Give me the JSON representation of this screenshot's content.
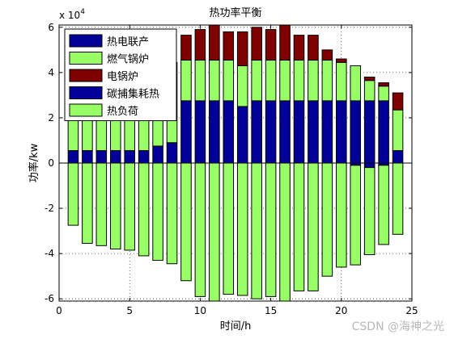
{
  "chart_data": {
    "type": "bar",
    "stacked": true,
    "title": "热功率平衡",
    "xlabel": "时间/h",
    "ylabel": "功率/kw",
    "exponent_label": "x 10",
    "exponent_power": "4",
    "xlim": [
      0,
      25
    ],
    "ylim": [
      -61000,
      61000
    ],
    "x_ticks": [
      0,
      5,
      10,
      15,
      20,
      25
    ],
    "y_ticks": [
      -60000,
      -40000,
      -20000,
      0,
      20000,
      40000,
      60000
    ],
    "y_tick_labels": [
      "-6",
      "-4",
      "-2",
      "0",
      "2",
      "4",
      "6"
    ],
    "grid": true,
    "legend_position": "top-left",
    "x": [
      1,
      2,
      3,
      4,
      5,
      6,
      7,
      8,
      9,
      10,
      11,
      12,
      13,
      14,
      15,
      16,
      17,
      18,
      19,
      20,
      21,
      22,
      23,
      24
    ],
    "series": [
      {
        "name": "热电联产",
        "color": "#000099",
        "values": [
          5500,
          5500,
          5500,
          5500,
          5500,
          5500,
          7500,
          9000,
          27500,
          27500,
          27500,
          27500,
          25000,
          27500,
          27500,
          27500,
          27500,
          27500,
          27500,
          27500,
          27500,
          27500,
          27500,
          5500
        ]
      },
      {
        "name": "燃气锅炉",
        "color": "#99ff66",
        "values": [
          22000,
          30000,
          31000,
          32500,
          33000,
          35500,
          35500,
          35500,
          18000,
          18000,
          18000,
          18000,
          18000,
          18000,
          18000,
          18000,
          18000,
          18000,
          18000,
          17000,
          15500,
          9000,
          6500,
          18000
        ]
      },
      {
        "name": "电锅炉",
        "color": "#800000",
        "values": [
          0,
          0,
          0,
          0,
          0,
          0,
          0,
          0,
          11000,
          13500,
          16000,
          12500,
          15000,
          14500,
          13500,
          17000,
          11000,
          11000,
          4500,
          1500,
          0,
          1500,
          1500,
          7500
        ]
      },
      {
        "name": "碳捕集耗热",
        "color": "#000099",
        "values": [
          0,
          0,
          0,
          0,
          0,
          0,
          0,
          0,
          0,
          0,
          0,
          0,
          0,
          0,
          0,
          0,
          0,
          0,
          0,
          0,
          -1000,
          -2000,
          -1000,
          0
        ]
      },
      {
        "name": "热负荷",
        "color": "#99ff66",
        "values": [
          -27500,
          -35500,
          -36500,
          -38000,
          -38500,
          -41000,
          -43000,
          -44500,
          -52000,
          -59000,
          -61500,
          -58000,
          -58500,
          -60000,
          -59000,
          -62500,
          -56500,
          -56500,
          -50000,
          -46000,
          -44000,
          -38500,
          -35000,
          -31500
        ]
      }
    ],
    "legend": [
      "热电联产",
      "燃气锅炉",
      "电锅炉",
      "碳捕集耗热",
      "热负荷"
    ]
  },
  "watermark": "CSDN @海神之光"
}
